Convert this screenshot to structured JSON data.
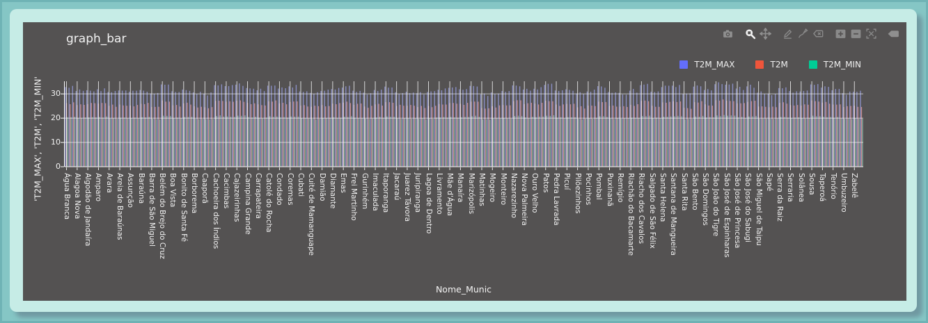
{
  "colors": {
    "page_bg": "#85c6c5",
    "panel_bg": "#c6ece6",
    "card_bg": "#545252",
    "text": "#f3f3f3",
    "grid": "#ffffff",
    "t2m_max_accent": "#636efa",
    "t2m_accent": "#ef553b",
    "t2m_min_accent": "#00cc96"
  },
  "modebar": {
    "icons": [
      "camera-icon",
      "zoom-icon",
      "pan-icon",
      "draw-line-icon",
      "draw-openpath-icon",
      "erase-shape-icon",
      "zoom-in-icon",
      "zoom-out-icon",
      "autoscale-icon",
      "plotly-logo-icon"
    ],
    "active_icon": "zoom-icon"
  },
  "chart_data": {
    "type": "bar",
    "title": "graph_bar",
    "xlabel": "Nome_Munic",
    "ylabel": "'T2M_MAX', 'T2M', 'T2M_MIN'",
    "yticks": [
      0,
      10,
      20,
      30
    ],
    "ylim": [
      0,
      35.2
    ],
    "grid": true,
    "legend_position": "top-right",
    "bar_mode": "grouped",
    "tick_label_every_n_groups": 3,
    "total_bar_groups": 225,
    "categories": [
      "Água Branca",
      "Alagoa Nova",
      "Algodão de Jandaíra",
      "Amparo",
      "Arara",
      "Areia de Baraúnas",
      "Assunção",
      "Baraúna",
      "Barra de São Miguel",
      "Belém do Brejo do Cruz",
      "Boa Vista",
      "Bonito de Santa Fé",
      "Borborema",
      "Caaporã",
      "Cachoeira dos Índios",
      "Cacimbas",
      "Cajazeirinhas",
      "Campina Grande",
      "Carrapateira",
      "Catolé do Rocha",
      "Condado",
      "Coremas",
      "Cubati",
      "Cuité de Mamanguape",
      "Damião",
      "Diamante",
      "Emas",
      "Frei Martinho",
      "Gurinhém",
      "Imaculada",
      "Itaporanga",
      "Jacaraú",
      "Juarez Távora",
      "Juripiranga",
      "Lagoa de Dentro",
      "Livramento",
      "Mãe d'Água",
      "Manaíra",
      "Marizópolis",
      "Matinhas",
      "Mogeiro",
      "Monteiro",
      "Nazarezinho",
      "Nova Palmeira",
      "Ouro Velho",
      "Patos",
      "Pedra Lavrada",
      "Picuí",
      "Pilõezinhos",
      "Pocinhos",
      "Pombal",
      "Puxinanã",
      "Remígio",
      "Riachão do Bacamarte",
      "Riacho dos Cavalos",
      "Salgado de São Félix",
      "Santa Helena",
      "Santana de Mangueira",
      "Santa Rita",
      "São Bento",
      "São Domingos",
      "São João do Tigre",
      "São José de Espinharas",
      "São José de Princesa",
      "São José do Sabugi",
      "São Miguel de Taipu",
      "Sapé",
      "Serra da Raiz",
      "Serraria",
      "Solânea",
      "Sousa",
      "Taperoá",
      "Tenório",
      "Umbuzeiro",
      "Zabelê"
    ],
    "series": [
      {
        "name": "T2M_MAX",
        "color": "#636efa",
        "bar_color": "#9096d1",
        "values": [
          32.8,
          31.2,
          31.5,
          31.9,
          30.8,
          31.4,
          30.9,
          31.6,
          30.2,
          33.9,
          31.1,
          31.8,
          30.6,
          30.1,
          33.6,
          33.2,
          33.8,
          32.4,
          31.5,
          33.4,
          32.2,
          33.1,
          31.0,
          30.4,
          31.2,
          32.0,
          32.6,
          31.3,
          30.5,
          31.6,
          33.0,
          30.7,
          30.9,
          30.3,
          30.8,
          31.7,
          32.5,
          31.9,
          33.3,
          29.8,
          30.6,
          31.2,
          33.5,
          31.8,
          32.1,
          33.7,
          31.4,
          31.9,
          30.2,
          31.0,
          33.2,
          30.8,
          30.4,
          31.3,
          33.6,
          30.9,
          32.8,
          33.4,
          29.9,
          33.0,
          31.6,
          34.0,
          33.8,
          32.2,
          33.1,
          30.5,
          30.1,
          32.4,
          31.2,
          31.0,
          33.9,
          32.6,
          31.5,
          30.3,
          30.9
        ]
      },
      {
        "name": "T2M",
        "color": "#ef553b",
        "bar_color": "#d29292",
        "values": [
          26.2,
          25.4,
          25.8,
          26.0,
          25.1,
          25.6,
          25.2,
          25.9,
          24.6,
          27.3,
          25.3,
          26.1,
          24.9,
          24.5,
          27.1,
          26.8,
          27.2,
          26.3,
          25.7,
          26.9,
          26.1,
          26.7,
          25.2,
          24.7,
          25.4,
          26.0,
          26.4,
          25.5,
          24.8,
          25.7,
          26.6,
          25.0,
          25.1,
          24.6,
          25.0,
          25.8,
          26.2,
          25.9,
          26.8,
          24.2,
          24.9,
          25.4,
          27.0,
          25.8,
          26.0,
          27.2,
          25.6,
          25.9,
          24.5,
          25.2,
          26.8,
          25.0,
          24.7,
          25.5,
          27.1,
          25.1,
          26.5,
          26.9,
          24.3,
          26.6,
          25.7,
          27.4,
          27.2,
          26.1,
          26.7,
          24.8,
          24.5,
          26.3,
          25.4,
          25.2,
          27.3,
          26.4,
          25.6,
          24.6,
          25.1
        ]
      },
      {
        "name": "T2M_MIN",
        "color": "#00cc96",
        "bar_color": "#84b3a5",
        "values": [
          20.4,
          20.1,
          20.3,
          20.5,
          19.9,
          20.2,
          20.0,
          20.4,
          19.7,
          21.0,
          20.0,
          20.5,
          19.8,
          19.6,
          20.9,
          20.7,
          21.0,
          20.5,
          20.2,
          20.8,
          20.4,
          20.7,
          20.0,
          19.7,
          20.1,
          20.4,
          20.6,
          20.2,
          19.8,
          20.3,
          20.7,
          19.9,
          20.0,
          19.7,
          20.0,
          20.3,
          20.5,
          20.4,
          20.8,
          19.5,
          19.9,
          20.1,
          20.9,
          20.3,
          20.4,
          21.0,
          20.2,
          20.4,
          19.7,
          20.0,
          20.8,
          19.9,
          19.8,
          20.2,
          20.9,
          20.0,
          20.6,
          20.8,
          19.5,
          20.7,
          20.3,
          21.1,
          21.0,
          20.4,
          20.7,
          19.8,
          19.7,
          20.5,
          20.1,
          20.0,
          21.0,
          20.6,
          20.2,
          19.7,
          20.0
        ]
      }
    ]
  }
}
